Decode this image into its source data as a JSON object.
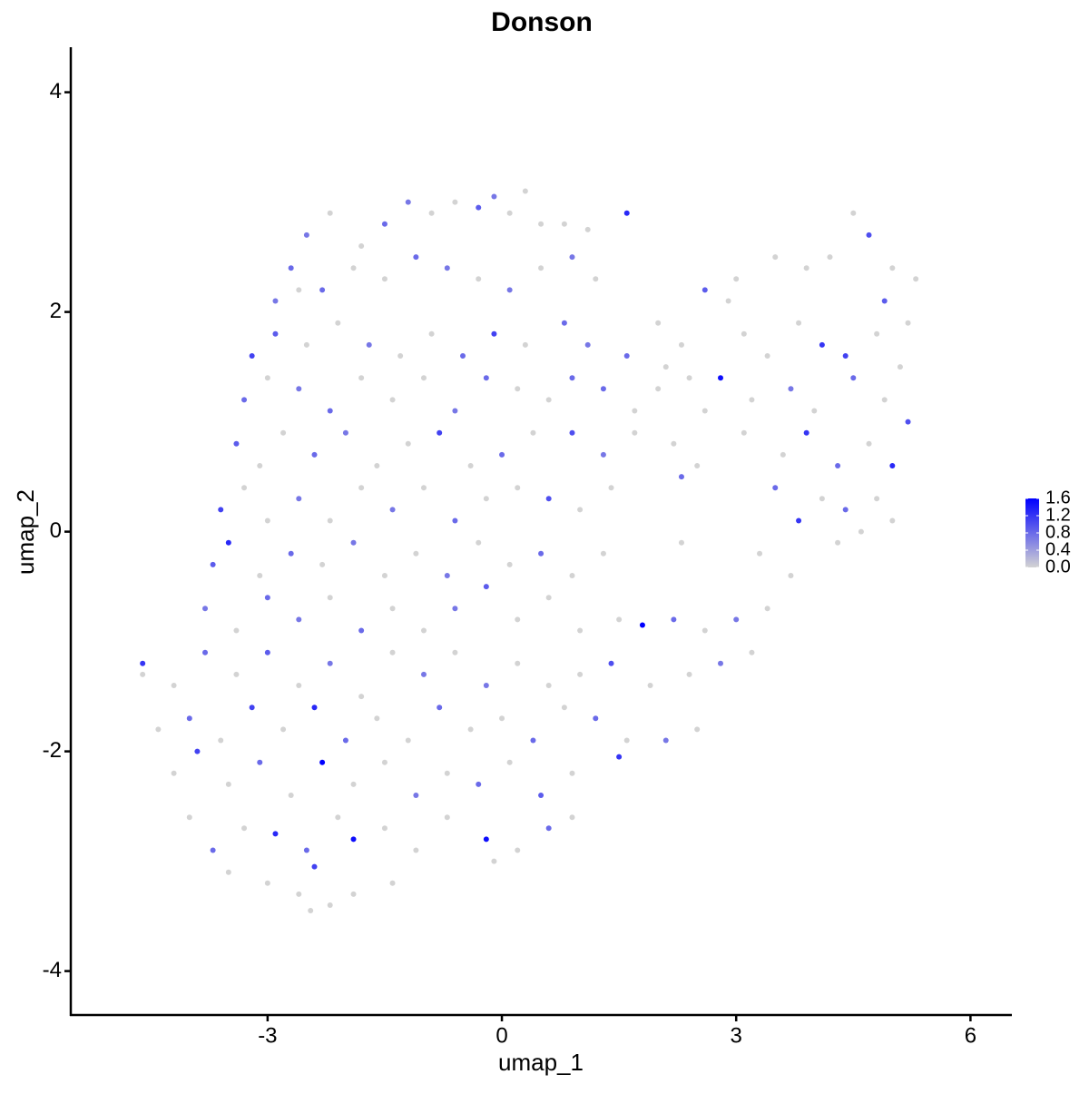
{
  "chart_data": {
    "type": "scatter",
    "title": "Donson",
    "x_label": "umap_1",
    "y_label": "umap_2",
    "xlim": [
      -5.52,
      6.53
    ],
    "ylim": [
      -4.4,
      4.41
    ],
    "xticks": [
      -3,
      0,
      3,
      6
    ],
    "yticks": [
      -4,
      -2,
      0,
      2,
      4
    ],
    "grid": false,
    "color_low": "#d3d3d3",
    "color_high": "#0000ff",
    "color_range": [
      0,
      1.6
    ],
    "colorbar_ticks": [
      {
        "value": 0,
        "label": "0.0"
      },
      0.4,
      0.8,
      1.2,
      1.6
    ],
    "x": [
      -1.5,
      -1.2,
      -0.9,
      -0.6,
      -0.3,
      -0.1,
      0.1,
      0.3,
      0.5,
      0.8,
      1.1,
      1.6,
      -1.8,
      -2.2,
      -2.5,
      -2.7,
      -2.9,
      -2.6,
      -2.3,
      -1.9,
      -1.5,
      -1.1,
      -0.7,
      -0.3,
      0.1,
      0.5,
      0.9,
      1.2,
      2.6,
      3.0,
      3.5,
      3.9,
      4.2,
      4.5,
      4.7,
      5.0,
      5.3,
      2.9,
      4.9,
      -3.2,
      -2.9,
      -2.5,
      -2.1,
      -1.7,
      -1.3,
      -0.9,
      -0.5,
      -0.1,
      0.3,
      0.8,
      1.1,
      1.6,
      2.0,
      2.3,
      3.1,
      3.4,
      3.8,
      4.1,
      4.4,
      4.8,
      5.2,
      2.1,
      -3.3,
      -3.0,
      -2.6,
      -2.2,
      -1.8,
      -1.4,
      -1.0,
      -0.6,
      -0.2,
      0.2,
      0.6,
      0.9,
      1.3,
      1.7,
      2.0,
      2.4,
      2.8,
      3.2,
      3.7,
      4.0,
      4.5,
      4.9,
      5.1,
      2.6,
      -3.4,
      -3.1,
      -2.8,
      -2.4,
      -2.0,
      -1.6,
      -1.2,
      -0.8,
      -0.4,
      0,
      0.4,
      0.9,
      1.3,
      1.7,
      2.2,
      2.5,
      3.1,
      3.6,
      3.9,
      4.3,
      4.7,
      5.0,
      5.2,
      2.3,
      -3.6,
      -3.3,
      -3.0,
      -2.6,
      -2.2,
      -1.8,
      -1.4,
      -1.0,
      -0.6,
      -0.2,
      0.2,
      0.6,
      1.0,
      1.4,
      3.8,
      4.1,
      4.4,
      4.8,
      3.5,
      5.0,
      -3.7,
      -3.5,
      -3.1,
      -2.7,
      -2.3,
      -1.9,
      -1.5,
      -1.1,
      -0.7,
      -0.3,
      0.1,
      0.5,
      0.9,
      1.3,
      2.3,
      3.3,
      3.7,
      4.3,
      4.6,
      -3.8,
      -3.4,
      -3.0,
      -2.6,
      -2.2,
      -1.8,
      -1.4,
      -1.0,
      -0.6,
      -0.2,
      0.2,
      0.6,
      1.0,
      1.5,
      1.8,
      2.2,
      2.6,
      3.0,
      3.4,
      -4.6,
      -4.6,
      -4.2,
      -3.8,
      -3.4,
      -3.0,
      -2.6,
      -2.2,
      -1.8,
      -1.4,
      -1.0,
      -0.6,
      -0.2,
      0.2,
      0.6,
      1.0,
      1.4,
      1.9,
      2.4,
      2.8,
      3.2,
      -4.4,
      -4.0,
      -3.6,
      -3.2,
      -2.8,
      -2.4,
      -2.0,
      -1.6,
      -1.2,
      -0.8,
      -0.4,
      0,
      0.4,
      0.8,
      1.2,
      1.6,
      2.1,
      2.5,
      -4.2,
      -3.9,
      -3.5,
      -3.1,
      -2.7,
      -2.3,
      -1.9,
      -1.5,
      -1.1,
      -0.7,
      -0.3,
      0.1,
      0.5,
      0.9,
      1.5,
      -4.0,
      -3.7,
      -3.3,
      -2.9,
      -2.5,
      -2.1,
      -1.9,
      -1.5,
      -1.1,
      -0.7,
      -0.2,
      0.2,
      0.6,
      0.9,
      -3.5,
      -3.0,
      -2.6,
      -2.2,
      -1.9,
      -1.4,
      -2.4,
      -0.1,
      -2.45
    ],
    "y": [
      2.8,
      3.0,
      2.9,
      3.0,
      2.95,
      3.05,
      2.9,
      3.1,
      2.8,
      2.8,
      2.75,
      2.9,
      2.6,
      2.9,
      2.7,
      2.4,
      2.1,
      2.2,
      2.2,
      2.4,
      2.3,
      2.5,
      2.4,
      2.3,
      2.2,
      2.4,
      2.5,
      2.3,
      2.2,
      2.3,
      2.5,
      2.4,
      2.5,
      2.9,
      2.7,
      2.4,
      2.3,
      2.1,
      2.1,
      1.6,
      1.8,
      1.7,
      1.9,
      1.7,
      1.6,
      1.8,
      1.6,
      1.8,
      1.7,
      1.9,
      1.7,
      1.6,
      1.9,
      1.7,
      1.8,
      1.6,
      1.9,
      1.7,
      1.6,
      1.8,
      1.9,
      1.5,
      1.2,
      1.4,
      1.3,
      1.1,
      1.4,
      1.2,
      1.4,
      1.1,
      1.4,
      1.3,
      1.2,
      1.4,
      1.3,
      1.1,
      1.3,
      1.4,
      1.4,
      1.2,
      1.3,
      1.1,
      1.4,
      1.2,
      1.5,
      1.1,
      0.8,
      0.6,
      0.9,
      0.7,
      0.9,
      0.6,
      0.8,
      0.9,
      0.6,
      0.7,
      0.9,
      0.9,
      0.7,
      0.9,
      0.8,
      0.6,
      0.9,
      0.7,
      0.9,
      0.6,
      0.8,
      0.6,
      1.0,
      0.5,
      0.2,
      0.4,
      0.1,
      0.3,
      0.1,
      0.4,
      0.2,
      0.4,
      0.1,
      0.3,
      0.4,
      0.3,
      0.2,
      0.4,
      0.1,
      0.3,
      0.2,
      0.3,
      0.4,
      0.1,
      -0.3,
      -0.1,
      -0.4,
      -0.2,
      -0.3,
      -0.1,
      -0.4,
      -0.2,
      -0.4,
      -0.1,
      -0.3,
      -0.2,
      -0.4,
      -0.2,
      -0.1,
      -0.2,
      -0.4,
      -0.1,
      0,
      -0.7,
      -0.9,
      -0.6,
      -0.8,
      -0.6,
      -0.9,
      -0.7,
      -0.9,
      -0.7,
      -0.5,
      -0.8,
      -0.6,
      -0.9,
      -0.8,
      -0.85,
      -0.8,
      -0.9,
      -0.8,
      -0.7,
      -1.2,
      -1.3,
      -1.4,
      -1.1,
      -1.3,
      -1.1,
      -1.4,
      -1.2,
      -1.5,
      -1.1,
      -1.3,
      -1.1,
      -1.4,
      -1.2,
      -1.4,
      -1.3,
      -1.2,
      -1.4,
      -1.3,
      -1.2,
      -1.1,
      -1.8,
      -1.7,
      -1.9,
      -1.6,
      -1.8,
      -1.6,
      -1.9,
      -1.7,
      -1.9,
      -1.6,
      -1.8,
      -1.7,
      -1.9,
      -1.6,
      -1.7,
      -1.9,
      -1.9,
      -1.8,
      -2.2,
      -2.0,
      -2.3,
      -2.1,
      -2.4,
      -2.1,
      -2.3,
      -2.1,
      -2.4,
      -2.2,
      -2.3,
      -2.1,
      -2.4,
      -2.2,
      -2.05,
      -2.6,
      -2.9,
      -2.7,
      -2.75,
      -2.9,
      -2.6,
      -2.8,
      -2.7,
      -2.9,
      -2.6,
      -2.8,
      -2.9,
      -2.7,
      -2.6,
      -3.1,
      -3.2,
      -3.3,
      -3.4,
      -3.3,
      -3.2,
      -3.05,
      -3.0,
      -3.45
    ],
    "values": [
      0.8,
      0.7,
      0,
      0,
      0.9,
      0.7,
      0,
      0,
      0,
      0,
      0,
      1.3,
      0,
      0,
      0.7,
      0.8,
      0.7,
      0,
      0.8,
      0,
      0,
      0.8,
      0.7,
      0,
      0.7,
      0,
      0.7,
      0,
      0.9,
      0,
      0,
      0,
      0,
      0,
      1.0,
      0,
      0,
      0,
      0.9,
      1.1,
      0.9,
      0,
      0,
      0.7,
      0,
      0,
      0.8,
      1.1,
      0,
      0.8,
      0.7,
      0.8,
      0,
      0,
      0,
      0,
      0,
      1.2,
      1.1,
      0,
      0,
      0,
      0.8,
      0,
      0.7,
      0.8,
      0,
      0,
      0,
      0.7,
      0.8,
      0,
      0,
      0.8,
      0.8,
      0,
      0,
      0,
      1.5,
      0,
      0.7,
      0,
      0.8,
      0,
      0,
      0,
      0.9,
      0,
      0,
      0.8,
      0.7,
      0,
      0,
      1.1,
      0,
      0.8,
      0,
      1.0,
      0.7,
      0,
      0,
      0,
      0,
      0,
      1.2,
      0.8,
      0,
      1.3,
      1.0,
      0.8,
      1.1,
      0,
      0,
      0.7,
      0,
      0,
      0.7,
      0,
      0.8,
      0,
      0,
      1.0,
      0,
      0,
      1.2,
      0,
      0.8,
      0,
      0.8,
      0,
      0.9,
      1.3,
      0,
      0.8,
      0,
      0.7,
      0,
      0,
      0.7,
      0,
      0,
      0.8,
      0,
      0,
      0,
      0,
      0,
      0,
      0,
      0.7,
      0,
      0.8,
      0.7,
      0,
      0.8,
      0,
      0,
      0.7,
      0.9,
      0,
      0,
      0,
      0,
      1.6,
      0.8,
      0,
      0.7,
      0,
      1.2,
      0,
      0,
      0.8,
      0,
      0.9,
      0,
      0.7,
      0,
      0,
      0.7,
      0,
      0.7,
      0,
      0,
      0,
      1.0,
      0,
      0,
      0.7,
      0,
      0,
      0.8,
      0,
      1.1,
      0,
      1.3,
      0.8,
      0,
      0,
      0.8,
      0,
      0,
      0.8,
      0,
      0.8,
      0,
      0.7,
      0,
      0,
      1.1,
      0,
      0.8,
      0,
      1.6,
      0,
      0,
      0.7,
      0,
      0.8,
      0,
      0.9,
      0,
      1.2,
      0,
      0.8,
      0,
      1.3,
      0.8,
      0,
      1.5,
      0,
      0,
      0,
      1.5,
      0,
      0.8,
      0,
      0,
      0,
      0,
      0,
      0,
      0,
      1.1,
      0,
      0
    ]
  }
}
